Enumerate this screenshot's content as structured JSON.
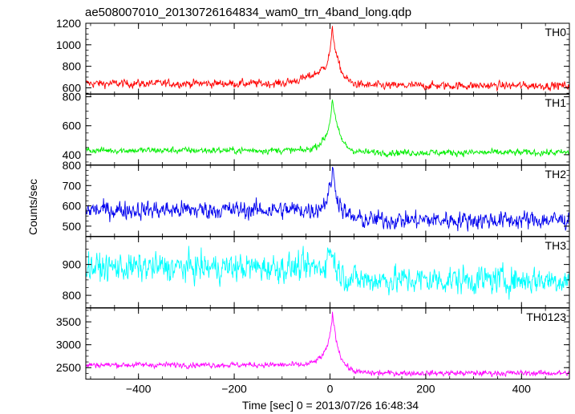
{
  "chart_data": {
    "type": "line",
    "title": "ae508007010_20130726164834_wam0_trn_4band_long.qdp",
    "xlabel": "Time [sec] 0 = 2013/07/26 16:48:34",
    "ylabel": "Counts/sec",
    "xlim": [
      -510,
      500
    ],
    "xticks": [
      -400,
      -200,
      0,
      200,
      400
    ],
    "sample_step_sec": 1,
    "panels": [
      {
        "name": "TH0",
        "color": "#ff0000",
        "ylim": [
          540,
          1200
        ],
        "yticks": [
          600,
          800,
          1000,
          1200
        ],
        "baseline_pre": 640,
        "baseline_post": 620,
        "noise_amplitude": 25,
        "peak_time": 5,
        "peak_value": 1150,
        "pre_trend_start": -120
      },
      {
        "name": "TH1",
        "color": "#00ee00",
        "ylim": [
          330,
          820
        ],
        "yticks": [
          400,
          600,
          800
        ],
        "baseline_pre": 430,
        "baseline_post": 415,
        "noise_amplitude": 15,
        "peak_time": 5,
        "peak_value": 790,
        "pre_trend_start": -60
      },
      {
        "name": "TH2",
        "color": "#0000ee",
        "ylim": [
          450,
          800
        ],
        "yticks": [
          500,
          600,
          700,
          800
        ],
        "baseline_pre": 580,
        "baseline_post": 530,
        "noise_amplitude": 30,
        "peak_time": 5,
        "peak_value": 780,
        "pre_trend_start": -40
      },
      {
        "name": "TH3",
        "color": "#00ffff",
        "ylim": [
          760,
          990
        ],
        "yticks": [
          800,
          900
        ],
        "baseline_pre": 890,
        "baseline_post": 850,
        "noise_amplitude": 30,
        "peak_time": 0,
        "peak_value": 960,
        "pre_trend_start": -20
      },
      {
        "name": "TH0123",
        "color": "#ff00ff",
        "ylim": [
          2250,
          3800
        ],
        "yticks": [
          2500,
          3000,
          3500
        ],
        "baseline_pre": 2560,
        "baseline_post": 2380,
        "noise_amplitude": 40,
        "peak_time": 5,
        "peak_value": 3700,
        "pre_trend_start": -60
      }
    ]
  }
}
